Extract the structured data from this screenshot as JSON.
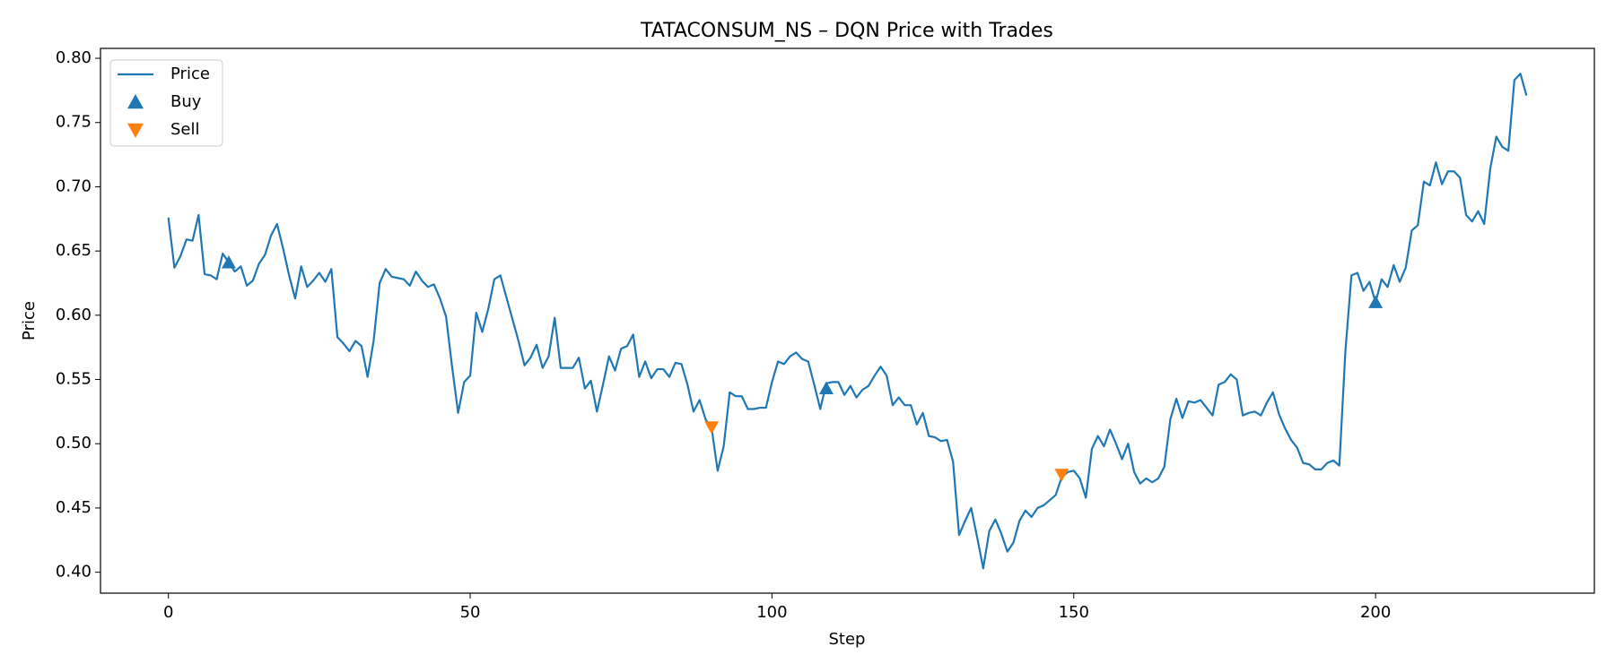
{
  "chart_data": {
    "type": "line",
    "title": "TATACONSUM_NS – DQN Price with Trades",
    "x_label": "Step",
    "y_label": "Price",
    "xlim": [
      -11.25,
      236.25
    ],
    "xticks": [
      0,
      50,
      100,
      150,
      200
    ],
    "ylim": [
      0.3837,
      0.8077
    ],
    "yticks": [
      {
        "value": 0.4,
        "label": "0.40"
      },
      0.45,
      {
        "value": 0.5,
        "label": "0.50"
      },
      0.55,
      {
        "value": 0.6,
        "label": "0.60"
      },
      0.65,
      {
        "value": 0.7,
        "label": "0.70"
      },
      0.75,
      {
        "value": 0.8,
        "label": "0.80"
      }
    ],
    "grid": false,
    "legend": "upper left",
    "series": [
      {
        "name": "Price",
        "color": "#1f77b4",
        "kind": "line",
        "x": [
          0,
          1,
          2,
          3,
          4,
          5,
          6,
          7,
          8,
          9,
          10,
          11,
          12,
          13,
          14,
          15,
          16,
          17,
          18,
          19,
          20,
          21,
          22,
          23,
          24,
          25,
          26,
          27,
          28,
          29,
          30,
          31,
          32,
          33,
          34,
          35,
          36,
          37,
          38,
          39,
          40,
          41,
          42,
          43,
          44,
          45,
          46,
          47,
          48,
          49,
          50,
          51,
          52,
          53,
          54,
          55,
          56,
          57,
          58,
          59,
          60,
          61,
          62,
          63,
          64,
          65,
          66,
          67,
          68,
          69,
          70,
          71,
          72,
          73,
          74,
          75,
          76,
          77,
          78,
          79,
          80,
          81,
          82,
          83,
          84,
          85,
          86,
          87,
          88,
          89,
          90,
          91,
          92,
          93,
          94,
          95,
          96,
          97,
          98,
          99,
          100,
          101,
          102,
          103,
          104,
          105,
          106,
          107,
          108,
          109,
          110,
          111,
          112,
          113,
          114,
          115,
          116,
          117,
          118,
          119,
          120,
          121,
          122,
          123,
          124,
          125,
          126,
          127,
          128,
          129,
          130,
          131,
          132,
          133,
          134,
          135,
          136,
          137,
          138,
          139,
          140,
          141,
          142,
          143,
          144,
          145,
          146,
          147,
          148,
          149,
          150,
          151,
          152,
          153,
          154,
          155,
          156,
          157,
          158,
          159,
          160,
          161,
          162,
          163,
          164,
          165,
          166,
          167,
          168,
          169,
          170,
          171,
          172,
          173,
          174,
          175,
          176,
          177,
          178,
          179,
          180,
          181,
          182,
          183,
          184,
          185,
          186,
          187,
          188,
          189,
          190,
          191,
          192,
          193,
          194,
          195,
          196,
          197,
          198,
          199,
          200,
          201,
          202,
          203,
          204,
          205,
          206,
          207,
          208,
          209,
          210,
          211,
          212,
          213,
          214,
          215,
          216,
          217,
          218,
          219,
          220,
          221,
          222,
          223,
          224,
          225
        ],
        "values": [
          0.676,
          0.637,
          0.646,
          0.659,
          0.658,
          0.678,
          0.632,
          0.631,
          0.628,
          0.648,
          0.641,
          0.634,
          0.638,
          0.623,
          0.627,
          0.64,
          0.647,
          0.662,
          0.671,
          0.652,
          0.631,
          0.613,
          0.638,
          0.622,
          0.627,
          0.633,
          0.626,
          0.636,
          0.583,
          0.578,
          0.572,
          0.58,
          0.576,
          0.552,
          0.58,
          0.625,
          0.636,
          0.63,
          0.629,
          0.628,
          0.623,
          0.634,
          0.627,
          0.622,
          0.624,
          0.613,
          0.599,
          0.56,
          0.524,
          0.548,
          0.553,
          0.602,
          0.587,
          0.605,
          0.628,
          0.631,
          0.614,
          0.597,
          0.58,
          0.561,
          0.567,
          0.577,
          0.559,
          0.568,
          0.598,
          0.559,
          0.559,
          0.559,
          0.567,
          0.543,
          0.549,
          0.525,
          0.546,
          0.568,
          0.557,
          0.574,
          0.576,
          0.585,
          0.552,
          0.564,
          0.551,
          0.558,
          0.558,
          0.552,
          0.563,
          0.562,
          0.546,
          0.525,
          0.534,
          0.519,
          0.512,
          0.479,
          0.498,
          0.54,
          0.537,
          0.537,
          0.527,
          0.527,
          0.528,
          0.528,
          0.548,
          0.564,
          0.562,
          0.568,
          0.571,
          0.566,
          0.564,
          0.546,
          0.527,
          0.547,
          0.548,
          0.548,
          0.538,
          0.545,
          0.536,
          0.542,
          0.545,
          0.553,
          0.56,
          0.553,
          0.53,
          0.536,
          0.53,
          0.53,
          0.515,
          0.524,
          0.506,
          0.505,
          0.502,
          0.503,
          0.486,
          0.429,
          0.44,
          0.45,
          0.427,
          0.403,
          0.432,
          0.441,
          0.43,
          0.416,
          0.423,
          0.44,
          0.448,
          0.443,
          0.45,
          0.452,
          0.456,
          0.46,
          0.474,
          0.478,
          0.479,
          0.473,
          0.458,
          0.496,
          0.506,
          0.498,
          0.511,
          0.5,
          0.488,
          0.5,
          0.478,
          0.469,
          0.473,
          0.47,
          0.473,
          0.482,
          0.519,
          0.535,
          0.52,
          0.533,
          0.532,
          0.534,
          0.528,
          0.522,
          0.546,
          0.548,
          0.554,
          0.55,
          0.522,
          0.524,
          0.525,
          0.522,
          0.532,
          0.54,
          0.523,
          0.512,
          0.503,
          0.497,
          0.485,
          0.484,
          0.48,
          0.48,
          0.485,
          0.487,
          0.483,
          0.572,
          0.631,
          0.633,
          0.619,
          0.626,
          0.61,
          0.628,
          0.622,
          0.639,
          0.626,
          0.637,
          0.666,
          0.67,
          0.704,
          0.701,
          0.719,
          0.702,
          0.712,
          0.712,
          0.707,
          0.678,
          0.673,
          0.681,
          0.671,
          0.714,
          0.739,
          0.731,
          0.728,
          0.783,
          0.788,
          0.771
        ]
      },
      {
        "name": "Buy",
        "color": "#1f77b4",
        "kind": "scatter",
        "marker": "triangle-up",
        "x": [
          10,
          109,
          200
        ],
        "values": [
          0.641,
          0.543,
          0.61
        ]
      },
      {
        "name": "Sell",
        "color": "#ff7f0e",
        "kind": "scatter",
        "marker": "triangle-down",
        "x": [
          90,
          148
        ],
        "values": [
          0.513,
          0.476
        ]
      }
    ]
  }
}
